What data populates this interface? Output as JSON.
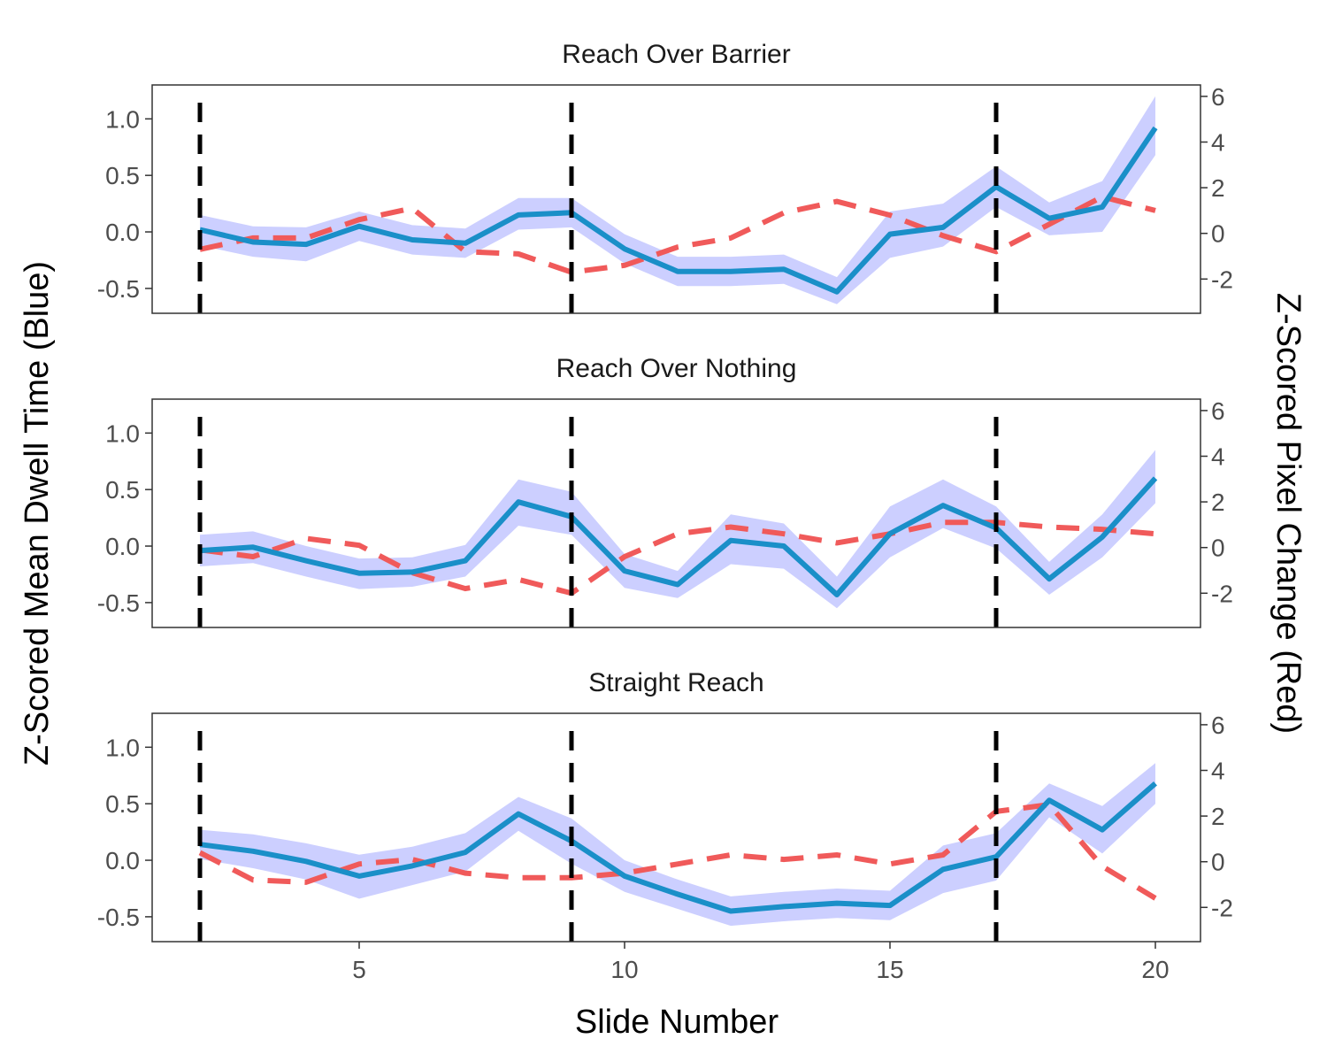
{
  "chart_data": {
    "type": "line",
    "xlabel": "Slide Number",
    "ylabel_left": "Z-Scored Mean Dwell Time (Blue)",
    "ylabel_right": "Z-Scored Pixel Change (Red)",
    "xlim": [
      1.1,
      20.85
    ],
    "x_ticks": [
      5,
      10,
      15,
      20
    ],
    "ylim_left": [
      -0.72,
      1.3
    ],
    "y_ticks_left": [
      -0.5,
      0.0,
      0.5,
      1.0
    ],
    "y_tick_labels_left": [
      "-0.5",
      "0.0",
      "0.5",
      "1.0"
    ],
    "ylim_right": [
      -3.5,
      6.5
    ],
    "y_ticks_right": [
      -2,
      0,
      2,
      4,
      6
    ],
    "y_tick_labels_right": [
      "-2",
      "0",
      "2",
      "4",
      "6"
    ],
    "vlines": [
      2,
      9,
      17
    ],
    "colors": {
      "dwell_line": "#1a8fc8",
      "dwell_band": "#cccfff",
      "pixel_line": "#f05a5a",
      "vline": "#000000"
    },
    "x": [
      2,
      3,
      4,
      5,
      6,
      7,
      8,
      9,
      10,
      11,
      12,
      13,
      14,
      15,
      16,
      17,
      18,
      19,
      20
    ],
    "panels": [
      {
        "title": "Reach Over Barrier",
        "dwell": [
          0.02,
          -0.09,
          -0.11,
          0.05,
          -0.07,
          -0.1,
          0.15,
          0.17,
          -0.15,
          -0.35,
          -0.35,
          -0.33,
          -0.53,
          -0.02,
          0.04,
          0.4,
          0.12,
          0.22,
          0.92
        ],
        "dwell_upper": [
          0.15,
          0.05,
          0.04,
          0.18,
          0.06,
          0.03,
          0.3,
          0.3,
          -0.02,
          -0.22,
          -0.22,
          -0.2,
          -0.4,
          0.18,
          0.25,
          0.58,
          0.26,
          0.45,
          1.2
        ],
        "dwell_lower": [
          -0.12,
          -0.22,
          -0.26,
          -0.08,
          -0.2,
          -0.23,
          0.02,
          0.04,
          -0.28,
          -0.48,
          -0.48,
          -0.46,
          -0.64,
          -0.23,
          -0.13,
          0.22,
          -0.03,
          0.0,
          0.68
        ],
        "pixel": [
          -0.7,
          -0.2,
          -0.2,
          0.6,
          1.1,
          -0.8,
          -0.9,
          -1.7,
          -1.4,
          -0.6,
          -0.2,
          0.9,
          1.4,
          0.8,
          -0.1,
          -0.8,
          0.4,
          1.6,
          1.0
        ]
      },
      {
        "title": "Reach Over Nothing",
        "dwell": [
          -0.04,
          -0.01,
          -0.13,
          -0.24,
          -0.23,
          -0.13,
          0.39,
          0.26,
          -0.22,
          -0.34,
          0.05,
          0.0,
          -0.43,
          0.11,
          0.36,
          0.16,
          -0.29,
          0.08,
          0.6
        ],
        "dwell_upper": [
          0.1,
          0.13,
          0.0,
          -0.11,
          -0.1,
          0.01,
          0.59,
          0.48,
          -0.07,
          -0.22,
          0.28,
          0.2,
          -0.27,
          0.35,
          0.59,
          0.35,
          -0.14,
          0.28,
          0.85
        ],
        "dwell_lower": [
          -0.18,
          -0.15,
          -0.27,
          -0.38,
          -0.36,
          -0.27,
          0.18,
          0.1,
          -0.37,
          -0.46,
          -0.16,
          -0.2,
          -0.55,
          -0.1,
          0.16,
          -0.02,
          -0.43,
          -0.1,
          0.38
        ],
        "pixel": [
          -0.1,
          -0.4,
          0.4,
          0.1,
          -1.1,
          -1.8,
          -1.4,
          -2.0,
          -0.4,
          0.6,
          0.9,
          0.6,
          0.2,
          0.6,
          1.1,
          1.1,
          0.9,
          0.8,
          0.6
        ]
      },
      {
        "title": "Straight Reach",
        "dwell": [
          0.14,
          0.08,
          -0.01,
          -0.14,
          -0.05,
          0.07,
          0.41,
          0.17,
          -0.14,
          -0.3,
          -0.45,
          -0.41,
          -0.38,
          -0.4,
          -0.08,
          0.03,
          0.53,
          0.27,
          0.68
        ],
        "dwell_upper": [
          0.27,
          0.23,
          0.15,
          0.05,
          0.12,
          0.24,
          0.56,
          0.37,
          0.0,
          -0.17,
          -0.32,
          -0.28,
          -0.25,
          -0.27,
          0.13,
          0.24,
          0.68,
          0.48,
          0.86
        ],
        "dwell_lower": [
          0.01,
          -0.07,
          -0.17,
          -0.34,
          -0.22,
          -0.1,
          0.26,
          -0.03,
          -0.28,
          -0.43,
          -0.58,
          -0.54,
          -0.51,
          -0.53,
          -0.29,
          -0.18,
          0.38,
          0.06,
          0.5
        ],
        "pixel": [
          0.4,
          -0.8,
          -0.9,
          -0.1,
          0.1,
          -0.5,
          -0.7,
          -0.7,
          -0.5,
          -0.1,
          0.3,
          0.1,
          0.3,
          -0.1,
          0.3,
          2.2,
          2.5,
          -0.2,
          -1.6
        ]
      }
    ]
  }
}
